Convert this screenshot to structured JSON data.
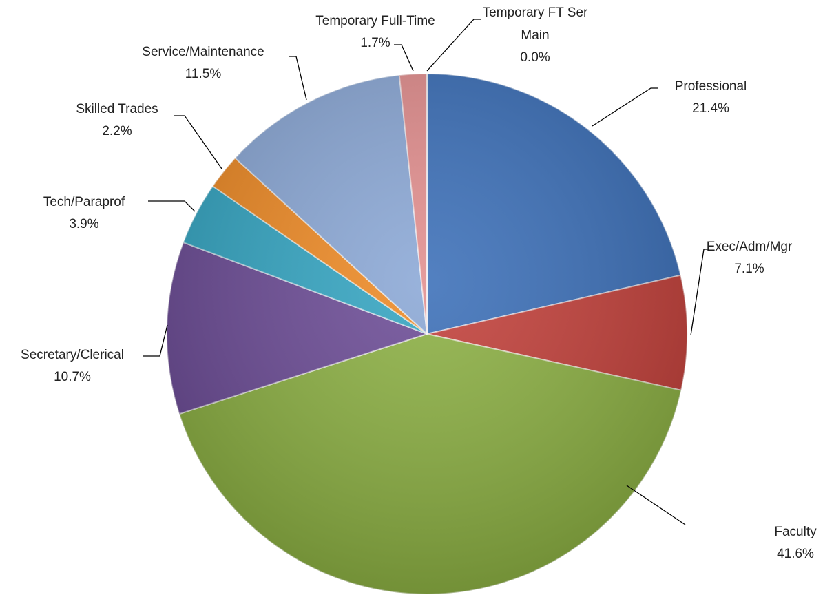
{
  "chart_data": {
    "type": "pie",
    "categories": [
      "Professional",
      "Exec/Adm/Mgr",
      "Faculty",
      "Secretary/Clerical",
      "Tech/Paraprof",
      "Skilled Trades",
      "Service/Maintenance",
      "Temporary Full-Time",
      "Temporary FT Ser Main"
    ],
    "values": [
      21.4,
      7.1,
      41.6,
      10.7,
      3.9,
      2.2,
      11.5,
      1.7,
      0.0
    ],
    "value_labels": [
      "21.4%",
      "7.1%",
      "41.6%",
      "10.7%",
      "3.9%",
      "2.2%",
      "11.5%",
      "1.7%",
      "0.0%"
    ],
    "colors": [
      "#3b6fb8",
      "#c2403a",
      "#8cb043",
      "#6c4c96",
      "#34a5c2",
      "#ee8a25",
      "#8ba8d6",
      "#e28e8e",
      "#b8cc6c"
    ]
  }
}
